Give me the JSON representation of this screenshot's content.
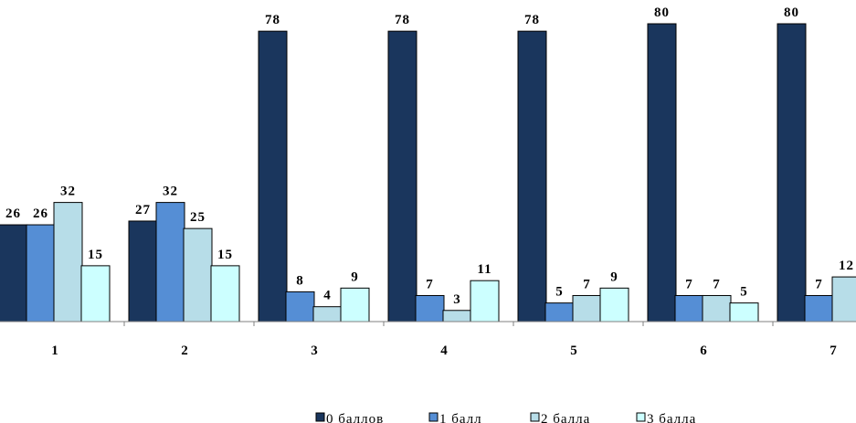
{
  "chart_data": {
    "type": "bar",
    "categories": [
      "1",
      "2",
      "3",
      "4",
      "5",
      "6",
      "7"
    ],
    "series": [
      {
        "name": "0 баллов",
        "color": "#1a365d",
        "values": [
          26,
          27,
          78,
          78,
          78,
          80,
          80
        ]
      },
      {
        "name": "1 балл",
        "color": "#558ed5",
        "values": [
          26,
          32,
          8,
          7,
          5,
          7,
          7
        ]
      },
      {
        "name": "2 балла",
        "color": "#b7dde8",
        "values": [
          32,
          25,
          4,
          3,
          7,
          7,
          12
        ]
      },
      {
        "name": "3 балла",
        "color": "#ccffff",
        "values": [
          15,
          15,
          9,
          11,
          9,
          5,
          null
        ]
      }
    ],
    "title": "",
    "xlabel": "",
    "ylabel": "",
    "ylim": [
      0,
      86
    ],
    "grid": false,
    "legend_position": "bottom"
  }
}
